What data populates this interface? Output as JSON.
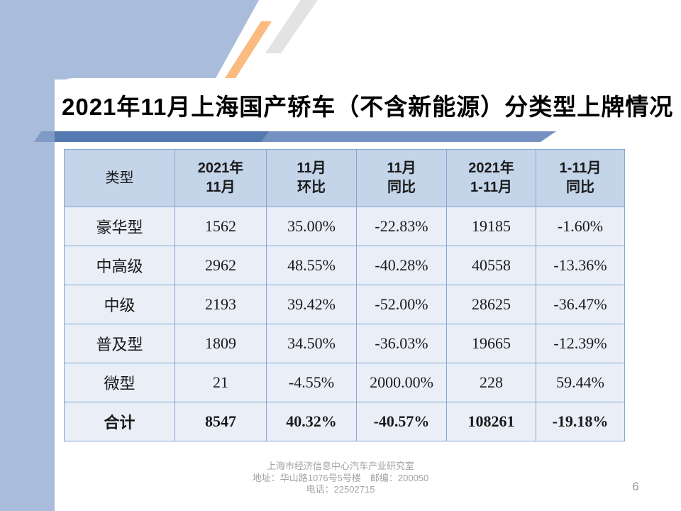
{
  "slide": {
    "title": "2021年11月上海国产轿车（不含新能源）分类型上牌情况",
    "page_number": "6",
    "footer": {
      "line1": "上海市经济信息中心汽车产业研究室",
      "line2": "地址：华山路1076号5号楼　邮编：200050",
      "line3": "电话：22502715"
    }
  },
  "table": {
    "headers": [
      "类型",
      "2021年\n11月",
      "11月\n环比",
      "11月\n同比",
      "2021年\n1-11月",
      "1-11月\n同比"
    ],
    "rows": [
      {
        "is_total": false,
        "cells": [
          "豪华型",
          "1562",
          "35.00%",
          "-22.83%",
          "19185",
          "-1.60%"
        ]
      },
      {
        "is_total": false,
        "cells": [
          "中高级",
          "2962",
          "48.55%",
          "-40.28%",
          "40558",
          "-13.36%"
        ]
      },
      {
        "is_total": false,
        "cells": [
          "中级",
          "2193",
          "39.42%",
          "-52.00%",
          "28625",
          "-36.47%"
        ]
      },
      {
        "is_total": false,
        "cells": [
          "普及型",
          "1809",
          "34.50%",
          "-36.03%",
          "19665",
          "-12.39%"
        ]
      },
      {
        "is_total": false,
        "cells": [
          "微型",
          "21",
          "-4.55%",
          "2000.00%",
          "228",
          "59.44%"
        ]
      },
      {
        "is_total": true,
        "cells": [
          "合计",
          "8547",
          "40.32%",
          "-40.57%",
          "108261",
          "-19.18%"
        ]
      }
    ]
  },
  "chart_data": {
    "type": "table",
    "title": "2021年11月上海国产轿车（不含新能源）分类型上牌情况",
    "columns": [
      "类型",
      "2021年11月",
      "11月环比",
      "11月同比",
      "2021年1-11月",
      "1-11月同比"
    ],
    "rows": [
      [
        "豪华型",
        1562,
        "35.00%",
        "-22.83%",
        19185,
        "-1.60%"
      ],
      [
        "中高级",
        2962,
        "48.55%",
        "-40.28%",
        40558,
        "-13.36%"
      ],
      [
        "中级",
        2193,
        "39.42%",
        "-52.00%",
        28625,
        "-36.47%"
      ],
      [
        "普及型",
        1809,
        "34.50%",
        "-36.03%",
        19665,
        "-12.39%"
      ],
      [
        "微型",
        21,
        "-4.55%",
        "2000.00%",
        228,
        "59.44%"
      ],
      [
        "合计",
        8547,
        "40.32%",
        "-40.57%",
        108261,
        "-19.18%"
      ]
    ]
  },
  "colors": {
    "background_blue": "#a9bcdb",
    "orange_accent": "#fbbb80",
    "gray_accent": "#e3e3e3",
    "title_bar_left": "#5479b1",
    "title_bar_right": "#7591c1",
    "header_row_bg": "#c4d5ea",
    "body_row_bg": "#e9eef7",
    "table_border": "#84a7d3",
    "footer_text": "#a3a3a3",
    "page_number": "#9a9a9a"
  }
}
